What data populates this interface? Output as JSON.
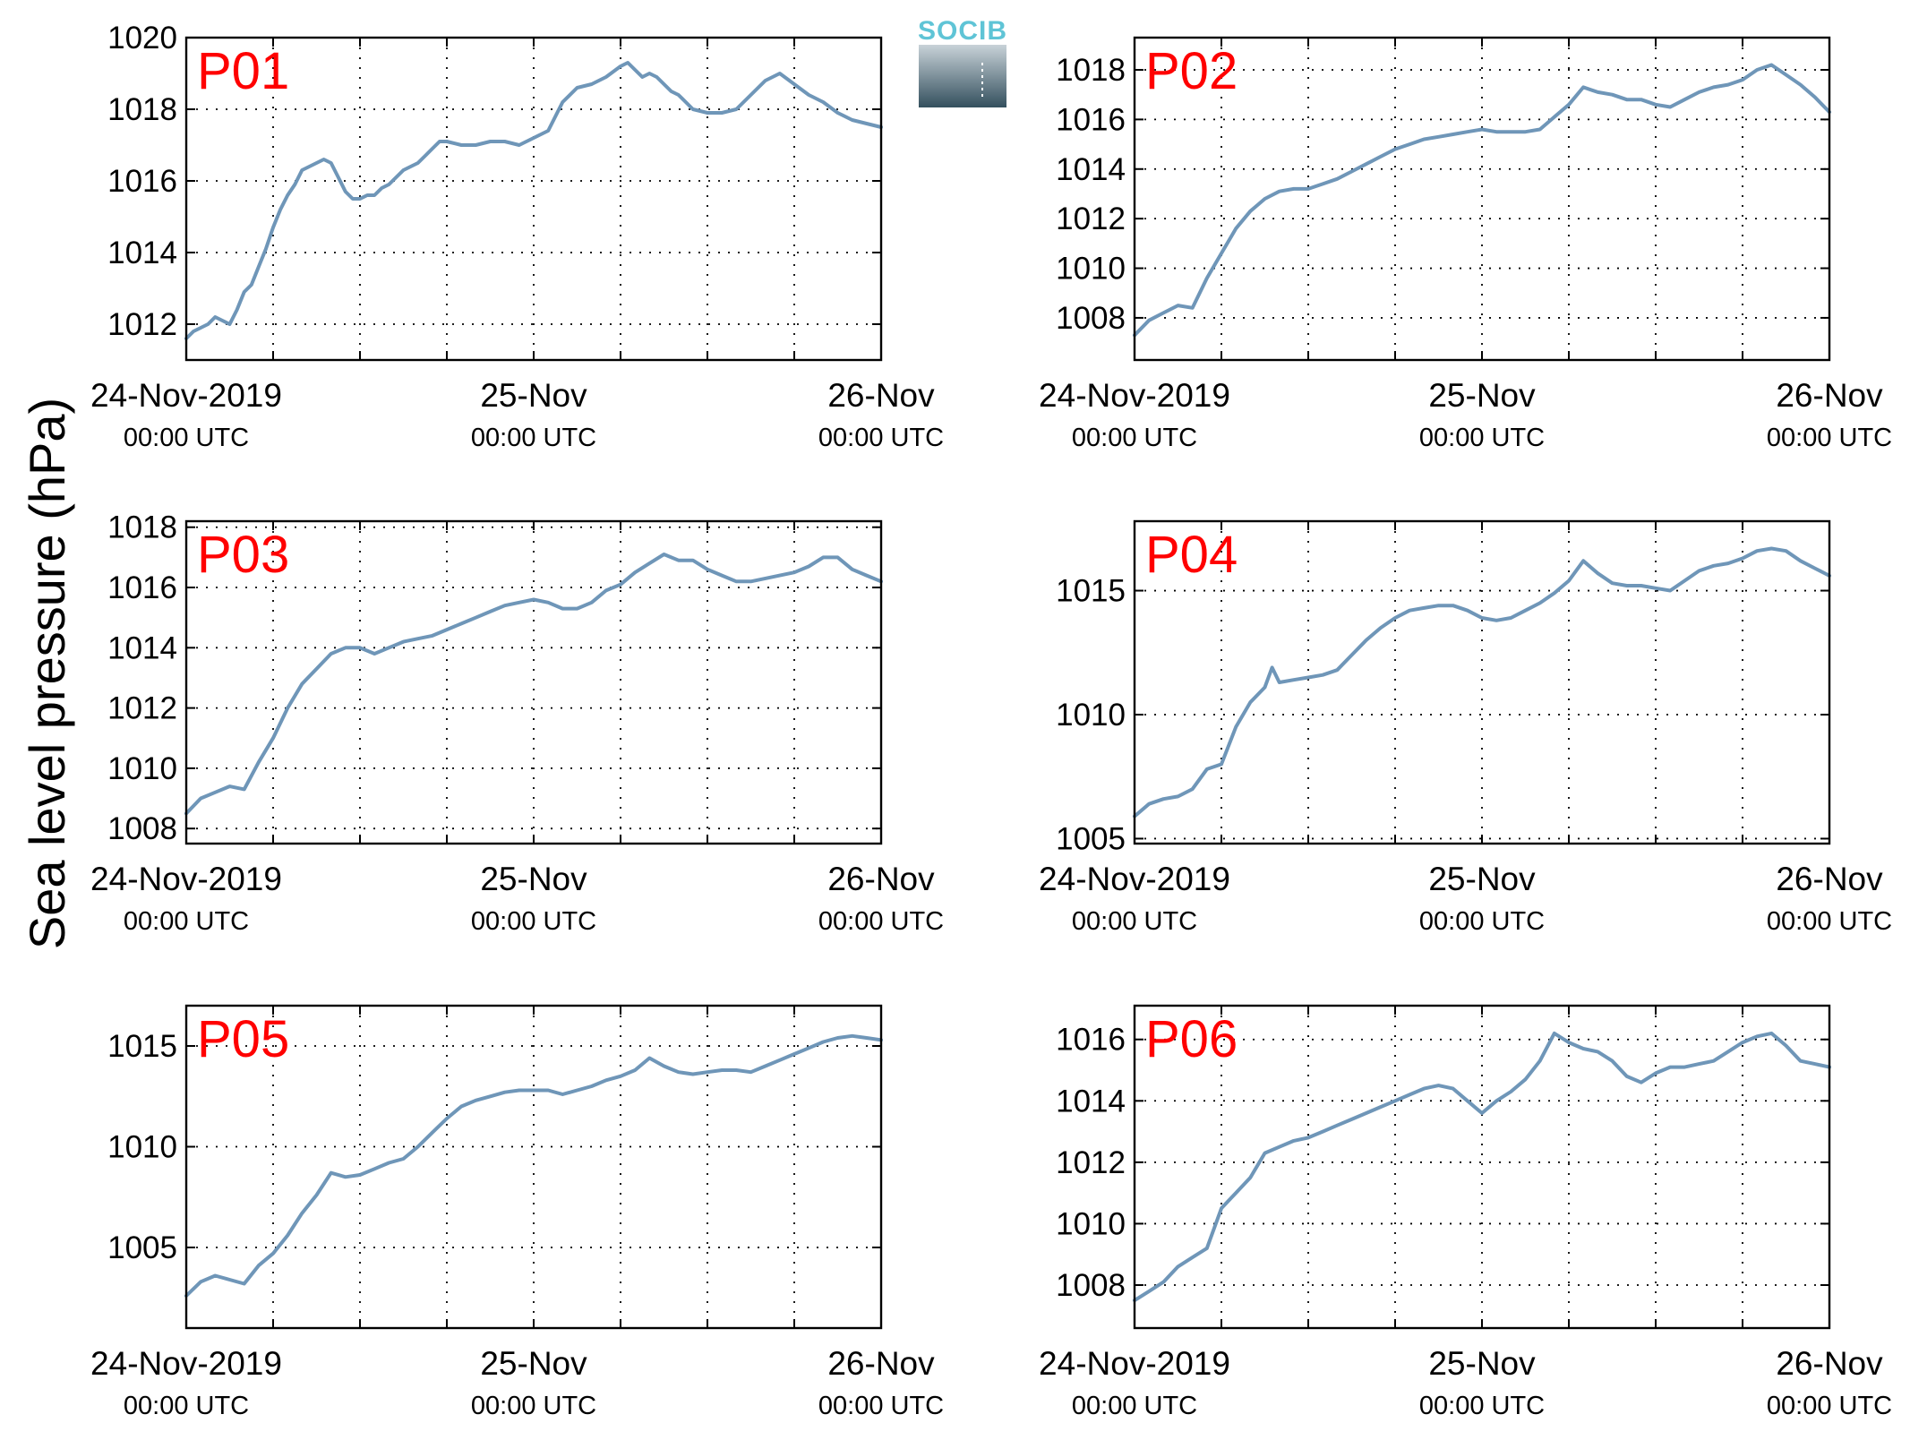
{
  "figure": {
    "ylabel": "Sea level pressure (hPa)",
    "logo_text": "SOCIB",
    "colors": {
      "series": "#6f96b8",
      "title": "#ff0000",
      "logo_text": "#5fc4d6",
      "logo_top": "#c8d2d8",
      "logo_bottom": "#34505e"
    },
    "icon": "socib-logo"
  },
  "chart_data": [
    {
      "type": "line",
      "title": "P01",
      "x_unit": "hours since 24-Nov-2019 00:00 UTC",
      "xlim": [
        0,
        48
      ],
      "ylim": [
        1011,
        1020
      ],
      "yticks": [
        1012,
        1014,
        1016,
        1018,
        1020
      ],
      "xtick_labels": [
        {
          "date": "24-Nov-2019",
          "time": "00:00 UTC"
        },
        {
          "date": "25-Nov",
          "time": "00:00 UTC"
        },
        {
          "date": "26-Nov",
          "time": "00:00 UTC"
        }
      ],
      "grid": true,
      "series": [
        {
          "x": [
            0,
            0.5,
            1,
            1.5,
            2,
            2.5,
            3,
            3.5,
            4,
            4.5,
            5,
            5.5,
            6,
            6.5,
            7,
            7.5,
            8,
            8.5,
            9,
            9.5,
            10,
            10.5,
            11,
            11.5,
            12,
            12.5,
            13,
            13.5,
            14,
            14.5,
            15,
            15.5,
            16,
            16.5,
            17,
            17.5,
            18,
            19,
            20,
            21,
            22,
            23,
            24,
            25,
            26,
            27,
            28,
            29,
            30,
            30.5,
            31,
            31.5,
            32,
            32.5,
            33,
            33.5,
            34,
            34.5,
            35,
            36,
            37,
            38,
            39,
            40,
            41,
            42,
            43,
            44,
            45,
            46,
            47,
            48
          ],
          "y": [
            1011.6,
            1011.8,
            1011.9,
            1012.0,
            1012.2,
            1012.1,
            1012.0,
            1012.4,
            1012.9,
            1013.1,
            1013.6,
            1014.1,
            1014.7,
            1015.2,
            1015.6,
            1015.9,
            1016.3,
            1016.4,
            1016.5,
            1016.6,
            1016.5,
            1016.1,
            1015.7,
            1015.5,
            1015.5,
            1015.6,
            1015.6,
            1015.8,
            1015.9,
            1016.1,
            1016.3,
            1016.4,
            1016.5,
            1016.7,
            1016.9,
            1017.1,
            1017.1,
            1017.0,
            1017.0,
            1017.1,
            1017.1,
            1017.0,
            1017.2,
            1017.4,
            1018.2,
            1018.6,
            1018.7,
            1018.9,
            1019.2,
            1019.3,
            1019.1,
            1018.9,
            1019.0,
            1018.9,
            1018.7,
            1018.5,
            1018.4,
            1018.2,
            1018.0,
            1017.9,
            1017.9,
            1018.0,
            1018.4,
            1018.8,
            1019.0,
            1018.7,
            1018.4,
            1018.2,
            1017.9,
            1017.7,
            1017.6,
            1017.5
          ]
        }
      ]
    },
    {
      "type": "line",
      "title": "P02",
      "x_unit": "hours since 24-Nov-2019 00:00 UTC",
      "xlim": [
        0,
        48
      ],
      "ylim": [
        1006.3,
        1019.3
      ],
      "yticks": [
        1008,
        1010,
        1012,
        1014,
        1016,
        1018
      ],
      "xtick_labels": [
        {
          "date": "24-Nov-2019",
          "time": "00:00 UTC"
        },
        {
          "date": "25-Nov",
          "time": "00:00 UTC"
        },
        {
          "date": "26-Nov",
          "time": "00:00 UTC"
        }
      ],
      "grid": true,
      "series": [
        {
          "x": [
            0,
            1,
            2,
            3,
            4,
            5,
            6,
            7,
            8,
            9,
            10,
            11,
            12,
            13,
            14,
            15,
            16,
            17,
            18,
            19,
            20,
            21,
            22,
            23,
            24,
            25,
            26,
            27,
            28,
            29,
            30,
            31,
            32,
            33,
            34,
            35,
            36,
            37,
            38,
            39,
            40,
            41,
            42,
            43,
            44,
            45,
            46,
            47,
            48
          ],
          "y": [
            1007.3,
            1007.9,
            1008.2,
            1008.5,
            1008.4,
            1009.6,
            1010.6,
            1011.6,
            1012.3,
            1012.8,
            1013.1,
            1013.2,
            1013.2,
            1013.4,
            1013.6,
            1013.9,
            1014.2,
            1014.5,
            1014.8,
            1015.0,
            1015.2,
            1015.3,
            1015.4,
            1015.5,
            1015.6,
            1015.5,
            1015.5,
            1015.5,
            1015.6,
            1016.1,
            1016.6,
            1017.3,
            1017.1,
            1017.0,
            1016.8,
            1016.8,
            1016.6,
            1016.5,
            1016.8,
            1017.1,
            1017.3,
            1017.4,
            1017.6,
            1018.0,
            1018.2,
            1017.8,
            1017.4,
            1016.9,
            1016.3
          ]
        }
      ]
    },
    {
      "type": "line",
      "title": "P03",
      "x_unit": "hours since 24-Nov-2019 00:00 UTC",
      "xlim": [
        0,
        48
      ],
      "ylim": [
        1007.5,
        1018.2
      ],
      "yticks": [
        1008,
        1010,
        1012,
        1014,
        1016,
        1018
      ],
      "xtick_labels": [
        {
          "date": "24-Nov-2019",
          "time": "00:00 UTC"
        },
        {
          "date": "25-Nov",
          "time": "00:00 UTC"
        },
        {
          "date": "26-Nov",
          "time": "00:00 UTC"
        }
      ],
      "grid": true,
      "series": [
        {
          "x": [
            0,
            1,
            2,
            3,
            4,
            5,
            6,
            7,
            8,
            9,
            10,
            11,
            12,
            13,
            14,
            15,
            16,
            17,
            18,
            19,
            20,
            21,
            22,
            23,
            24,
            25,
            26,
            27,
            28,
            29,
            30,
            31,
            32,
            33,
            34,
            35,
            36,
            37,
            38,
            39,
            40,
            41,
            42,
            43,
            44,
            45,
            46,
            47,
            48
          ],
          "y": [
            1008.5,
            1009.0,
            1009.2,
            1009.4,
            1009.3,
            1010.2,
            1011.0,
            1012.0,
            1012.8,
            1013.3,
            1013.8,
            1014.0,
            1014.0,
            1013.8,
            1014.0,
            1014.2,
            1014.3,
            1014.4,
            1014.6,
            1014.8,
            1015.0,
            1015.2,
            1015.4,
            1015.5,
            1015.6,
            1015.5,
            1015.3,
            1015.3,
            1015.5,
            1015.9,
            1016.1,
            1016.5,
            1016.8,
            1017.1,
            1016.9,
            1016.9,
            1016.6,
            1016.4,
            1016.2,
            1016.2,
            1016.3,
            1016.4,
            1016.5,
            1016.7,
            1017.0,
            1017.0,
            1016.6,
            1016.4,
            1016.2
          ]
        }
      ]
    },
    {
      "type": "line",
      "title": "P04",
      "x_unit": "hours since 24-Nov-2019 00:00 UTC",
      "xlim": [
        0,
        48
      ],
      "ylim": [
        1004.8,
        1017.8
      ],
      "yticks": [
        1005,
        1010,
        1015
      ],
      "xtick_labels": [
        {
          "date": "24-Nov-2019",
          "time": "00:00 UTC"
        },
        {
          "date": "25-Nov",
          "time": "00:00 UTC"
        },
        {
          "date": "26-Nov",
          "time": "00:00 UTC"
        }
      ],
      "grid": true,
      "series": [
        {
          "x": [
            0,
            1,
            2,
            3,
            4,
            5,
            6,
            7,
            8,
            9,
            9.5,
            10,
            11,
            12,
            13,
            14,
            15,
            16,
            17,
            18,
            19,
            20,
            21,
            22,
            23,
            24,
            25,
            26,
            27,
            28,
            29,
            30,
            31,
            32,
            33,
            34,
            35,
            36,
            37,
            38,
            39,
            40,
            41,
            42,
            43,
            44,
            45,
            46,
            47,
            48
          ],
          "y": [
            1005.9,
            1006.4,
            1006.6,
            1006.7,
            1007.0,
            1007.8,
            1008.0,
            1009.5,
            1010.5,
            1011.1,
            1011.9,
            1011.3,
            1011.4,
            1011.5,
            1011.6,
            1011.8,
            1012.4,
            1013.0,
            1013.5,
            1013.9,
            1014.2,
            1014.3,
            1014.4,
            1014.4,
            1014.2,
            1013.9,
            1013.8,
            1013.9,
            1014.2,
            1014.5,
            1014.9,
            1015.4,
            1016.2,
            1015.7,
            1015.3,
            1015.2,
            1015.2,
            1015.1,
            1015.0,
            1015.4,
            1015.8,
            1016.0,
            1016.1,
            1016.3,
            1016.6,
            1016.7,
            1016.6,
            1016.2,
            1015.9,
            1015.6
          ]
        }
      ]
    },
    {
      "type": "line",
      "title": "P05",
      "x_unit": "hours since 24-Nov-2019 00:00 UTC",
      "xlim": [
        0,
        48
      ],
      "ylim": [
        1001,
        1017
      ],
      "yticks": [
        1005,
        1010,
        1015
      ],
      "xtick_labels": [
        {
          "date": "24-Nov-2019",
          "time": "00:00 UTC"
        },
        {
          "date": "25-Nov",
          "time": "00:00 UTC"
        },
        {
          "date": "26-Nov",
          "time": "00:00 UTC"
        }
      ],
      "grid": true,
      "series": [
        {
          "x": [
            0,
            1,
            2,
            3,
            4,
            5,
            6,
            7,
            8,
            9,
            10,
            11,
            12,
            13,
            14,
            15,
            16,
            17,
            18,
            19,
            20,
            21,
            22,
            23,
            24,
            25,
            26,
            27,
            28,
            29,
            30,
            31,
            32,
            33,
            34,
            35,
            36,
            37,
            38,
            39,
            40,
            41,
            42,
            43,
            44,
            45,
            46,
            47,
            48
          ],
          "y": [
            1002.6,
            1003.3,
            1003.6,
            1003.4,
            1003.2,
            1004.1,
            1004.7,
            1005.6,
            1006.7,
            1007.6,
            1008.7,
            1008.5,
            1008.6,
            1008.9,
            1009.2,
            1009.4,
            1010.0,
            1010.7,
            1011.4,
            1012.0,
            1012.3,
            1012.5,
            1012.7,
            1012.8,
            1012.8,
            1012.8,
            1012.6,
            1012.8,
            1013.0,
            1013.3,
            1013.5,
            1013.8,
            1014.4,
            1014.0,
            1013.7,
            1013.6,
            1013.7,
            1013.8,
            1013.8,
            1013.7,
            1014.0,
            1014.3,
            1014.6,
            1014.9,
            1015.2,
            1015.4,
            1015.5,
            1015.4,
            1015.3
          ]
        }
      ]
    },
    {
      "type": "line",
      "title": "P06",
      "x_unit": "hours since 24-Nov-2019 00:00 UTC",
      "xlim": [
        0,
        48
      ],
      "ylim": [
        1006.6,
        1017.1
      ],
      "yticks": [
        1008,
        1010,
        1012,
        1014,
        1016
      ],
      "xtick_labels": [
        {
          "date": "24-Nov-2019",
          "time": "00:00 UTC"
        },
        {
          "date": "25-Nov",
          "time": "00:00 UTC"
        },
        {
          "date": "26-Nov",
          "time": "00:00 UTC"
        }
      ],
      "grid": true,
      "series": [
        {
          "x": [
            0,
            1,
            2,
            3,
            4,
            5,
            6,
            7,
            8,
            9,
            10,
            11,
            12,
            13,
            14,
            15,
            16,
            17,
            18,
            19,
            20,
            21,
            22,
            23,
            24,
            25,
            26,
            27,
            28,
            29,
            30,
            31,
            32,
            33,
            34,
            35,
            36,
            37,
            38,
            39,
            40,
            41,
            42,
            43,
            44,
            45,
            46,
            47,
            48
          ],
          "y": [
            1007.5,
            1007.8,
            1008.1,
            1008.6,
            1008.9,
            1009.2,
            1010.5,
            1011.0,
            1011.5,
            1012.3,
            1012.5,
            1012.7,
            1012.8,
            1013.0,
            1013.2,
            1013.4,
            1013.6,
            1013.8,
            1014.0,
            1014.2,
            1014.4,
            1014.5,
            1014.4,
            1014.0,
            1013.6,
            1014.0,
            1014.3,
            1014.7,
            1015.3,
            1016.2,
            1015.9,
            1015.7,
            1015.6,
            1015.3,
            1014.8,
            1014.6,
            1014.9,
            1015.1,
            1015.1,
            1015.2,
            1015.3,
            1015.6,
            1015.9,
            1016.1,
            1016.2,
            1015.8,
            1015.3,
            1015.2,
            1015.1
          ]
        }
      ]
    }
  ]
}
